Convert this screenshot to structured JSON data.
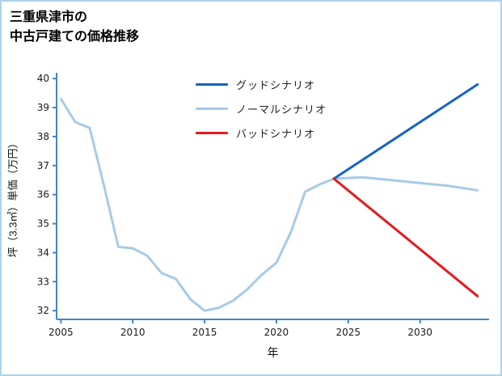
{
  "title": {
    "line1": "三重県津市の",
    "line2": "中古戸建ての価格推移"
  },
  "chart_data": {
    "type": "line",
    "title": "三重県津市の中古戸建ての価格推移",
    "xlabel": "年",
    "ylabel": "坪（3.3㎡）単価（万円）",
    "xlim": [
      2004.7,
      2034.8
    ],
    "ylim": [
      31.7,
      40.2
    ],
    "xticks": [
      2005,
      2010,
      2015,
      2020,
      2025,
      2030
    ],
    "yticks": [
      32,
      33,
      34,
      35,
      36,
      37,
      38,
      39,
      40
    ],
    "grid": false,
    "legend_position": "upper-center-inside",
    "axis_color": "#4286c5",
    "line_width": 3,
    "draw_order": [
      1,
      0,
      2
    ],
    "series": [
      {
        "name": "グッドシナリオ",
        "color": "#1565c0",
        "x": [
          2024,
          2034
        ],
        "y": [
          36.55,
          39.8
        ]
      },
      {
        "name": "ノーマルシナリオ",
        "color": "#a7cbe8",
        "x": [
          2005,
          2006,
          2007,
          2008,
          2009,
          2010,
          2011,
          2012,
          2013,
          2014,
          2015,
          2016,
          2017,
          2018,
          2019,
          2020,
          2021,
          2022,
          2023,
          2024,
          2026,
          2028,
          2030,
          2032,
          2034
        ],
        "y": [
          39.3,
          38.5,
          38.3,
          36.3,
          34.2,
          34.15,
          33.9,
          33.3,
          33.1,
          32.4,
          32.0,
          32.1,
          32.35,
          32.75,
          33.25,
          33.65,
          34.7,
          36.1,
          36.35,
          36.55,
          36.6,
          36.5,
          36.4,
          36.3,
          36.15
        ]
      },
      {
        "name": "バッドシナリオ",
        "color": "#e41a1c",
        "x": [
          2024,
          2034
        ],
        "y": [
          36.55,
          32.5
        ]
      }
    ]
  }
}
